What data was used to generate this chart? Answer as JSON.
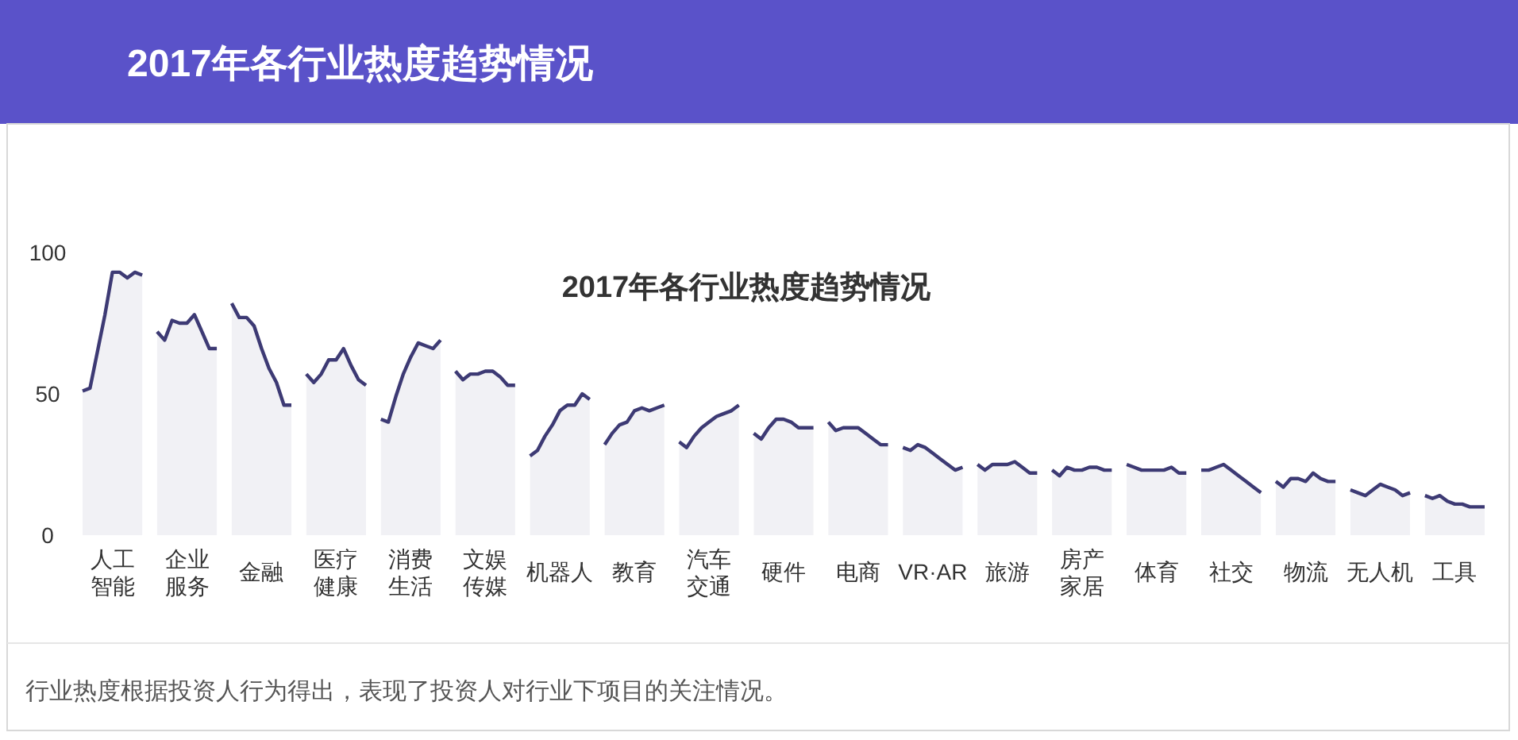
{
  "chart_data": {
    "type": "area",
    "title": "2017年各行业热度趋势情况",
    "annotations": [
      "2017年各行业热度趋势情况",
      "行业热度根据投资人行为得出，表现了投资人对行业下项目的关注情况。"
    ],
    "categories": [
      null,
      null,
      null,
      null,
      "人工智能",
      null,
      null,
      null,
      null,
      null,
      null,
      null,
      null,
      null,
      "企业服务",
      null,
      null,
      null,
      null,
      null,
      null,
      null,
      null,
      null,
      "金融",
      null,
      null,
      null,
      null,
      null,
      null,
      null,
      null,
      null,
      "医疗健康",
      null,
      null,
      null,
      null,
      null,
      null,
      null,
      null,
      null,
      "消费生活",
      null,
      null,
      null,
      null,
      null,
      null,
      null,
      null,
      null,
      "文娱传媒",
      null,
      null,
      null,
      null,
      null,
      null,
      null,
      null,
      null,
      "机器人",
      null,
      null,
      null,
      null,
      null,
      null,
      null,
      null,
      null,
      "教育",
      null,
      null,
      null,
      null,
      null,
      null,
      null,
      null,
      null,
      "汽车交通",
      null,
      null,
      null,
      null,
      null,
      null,
      null,
      null,
      null,
      "硬件",
      null,
      null,
      null,
      null,
      null,
      null,
      null,
      null,
      null,
      "电商",
      null,
      null,
      null,
      null,
      null,
      null,
      null,
      null,
      null,
      "VR·AR",
      null,
      null,
      null,
      null,
      null,
      null,
      null,
      null,
      null,
      "旅游",
      null,
      null,
      null,
      null,
      null,
      null,
      null,
      null,
      null,
      "房产家居",
      null,
      null,
      null,
      null,
      null,
      null,
      null,
      null,
      null,
      "体育",
      null,
      null,
      null,
      null,
      null,
      null,
      null,
      null,
      null,
      "社交",
      null,
      null,
      null,
      null,
      null,
      null,
      null,
      null,
      null,
      "物流",
      null,
      null,
      null,
      null,
      null,
      null,
      null,
      null,
      null,
      "无人机",
      null,
      null,
      null,
      null,
      null,
      null,
      null,
      null,
      null,
      "工具",
      null,
      null,
      null,
      null
    ],
    "ylim": [
      0,
      100
    ],
    "yticks": [
      0,
      50,
      100
    ],
    "series": [
      {
        "color": "#3d3a74",
        "values": [
          51,
          52,
          65,
          78,
          93,
          93,
          91,
          93,
          92,
          null,
          72,
          69,
          76,
          75,
          75,
          78,
          72,
          66,
          66,
          null,
          82,
          77,
          77,
          74,
          66,
          59,
          54,
          46,
          46,
          null,
          57,
          54,
          57,
          62,
          62,
          66,
          60,
          55,
          53,
          null,
          41,
          40,
          49,
          57,
          63,
          68,
          67,
          66,
          69,
          null,
          58,
          55,
          57,
          57,
          58,
          58,
          56,
          53,
          53,
          null,
          28,
          30,
          35,
          39,
          44,
          46,
          46,
          50,
          48,
          null,
          32,
          36,
          39,
          40,
          44,
          45,
          44,
          45,
          46,
          null,
          33,
          31,
          35,
          38,
          40,
          42,
          43,
          44,
          46,
          null,
          36,
          34,
          38,
          41,
          41,
          40,
          38,
          38,
          38,
          null,
          40,
          37,
          38,
          38,
          38,
          36,
          34,
          32,
          32,
          null,
          31,
          30,
          32,
          31,
          29,
          27,
          25,
          23,
          24,
          null,
          25,
          23,
          25,
          25,
          25,
          26,
          24,
          22,
          22,
          null,
          23,
          21,
          24,
          23,
          23,
          24,
          24,
          23,
          23,
          null,
          25,
          24,
          23,
          23,
          23,
          23,
          24,
          22,
          22,
          null,
          23,
          23,
          24,
          25,
          23,
          21,
          19,
          17,
          15,
          null,
          19,
          17,
          20,
          20,
          19,
          22,
          20,
          19,
          19,
          null,
          16,
          15,
          14,
          16,
          18,
          17,
          16,
          14,
          15,
          null,
          14,
          13,
          14,
          12,
          11,
          11,
          10,
          10,
          10
        ]
      }
    ]
  }
}
